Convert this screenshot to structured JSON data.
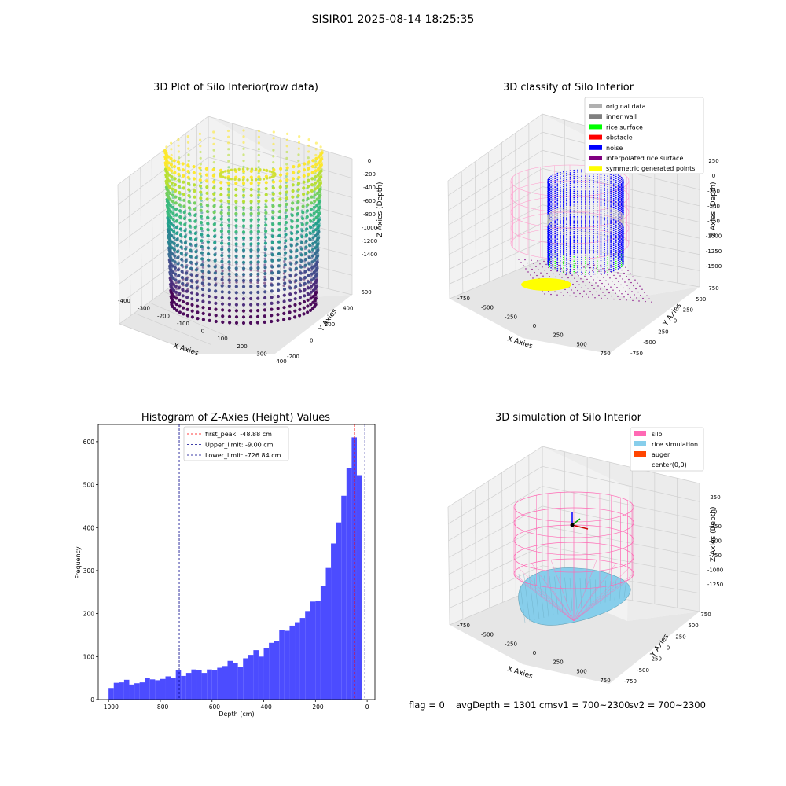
{
  "suptitle": "SISIR01 2025-08-14 18:25:35",
  "status": {
    "flag": "flag = 0",
    "avg": "avgDepth = 1301 cmsv1 = 700~2300",
    "sv2": "sv2 = 700~2300"
  },
  "colors": {
    "hist_bar": "#4c4cff",
    "peak_line": "#ff0000",
    "limit_line": "#00008b",
    "silo": "#ff69b4",
    "rice": "#87ceeb",
    "auger": "#ff4500",
    "noise": "#0000ff",
    "original": "#b0b0b0",
    "inner_wall": "#808080",
    "rice_surface": "#00ff00",
    "obstacle": "#ff0000",
    "interp": "#800080",
    "symmetric": "#ffff00"
  },
  "chart_data": [
    {
      "type": "scatter",
      "title": "3D Plot of Silo Interior(row data)",
      "xlabel": "X Axies",
      "ylabel": "Y Axies",
      "zlabel": "Z Axies (Depth)",
      "x_ticks": [
        "-400",
        "-300",
        "-200",
        "-100",
        "0",
        "100",
        "200",
        "300",
        "400"
      ],
      "y_ticks": [
        "-200",
        "0",
        "200",
        "400",
        "600"
      ],
      "z_ticks": [
        "0",
        "-200",
        "-400",
        "-600",
        "-800",
        "-1000",
        "-1200",
        "-1400"
      ],
      "xlim": [
        -400,
        400
      ],
      "ylim": [
        -200,
        650
      ],
      "zlim": [
        -1450,
        50
      ],
      "colormap": "viridis",
      "grid": true
    },
    {
      "type": "scatter",
      "title": "3D classify of Silo Interior",
      "xlabel": "X Axies",
      "ylabel": "Y Axies",
      "zlabel": "Z Axies (Depth)",
      "x_ticks": [
        "-750",
        "-500",
        "-250",
        "0",
        "250",
        "500",
        "750"
      ],
      "y_ticks": [
        "-750",
        "-500",
        "-250",
        "0",
        "250",
        "500",
        "750"
      ],
      "z_ticks": [
        "250",
        "0",
        "-250",
        "-500",
        "-750",
        "-1000",
        "-1250",
        "-1500"
      ],
      "legend_position": "top-right",
      "legend": [
        {
          "label": "original data",
          "color": "#b0b0b0"
        },
        {
          "label": "inner wall",
          "color": "#808080"
        },
        {
          "label": "rice surface",
          "color": "#00ff00"
        },
        {
          "label": "obstacle",
          "color": "#ff0000"
        },
        {
          "label": "noise",
          "color": "#0000ff"
        },
        {
          "label": "interpolated rice surface",
          "color": "#800080"
        },
        {
          "label": "symmetric generated points",
          "color": "#ffff00"
        }
      ],
      "grid": true
    },
    {
      "type": "bar",
      "title": "Histogram of Z-Axies (Height) Values",
      "xlabel": "Depth (cm)",
      "ylabel": "Frequency",
      "xlim": [
        -1040,
        30
      ],
      "ylim": [
        0,
        640
      ],
      "x_ticks": [
        -1000,
        -800,
        -600,
        -400,
        -200,
        0
      ],
      "y_ticks": [
        0,
        100,
        200,
        300,
        400,
        500,
        600
      ],
      "bin_start": -1000,
      "bin_width": 20,
      "values": [
        27,
        39,
        40,
        46,
        35,
        38,
        40,
        50,
        47,
        45,
        48,
        54,
        50,
        68,
        55,
        62,
        70,
        68,
        62,
        70,
        68,
        74,
        78,
        90,
        85,
        76,
        96,
        104,
        115,
        100,
        120,
        132,
        136,
        162,
        160,
        172,
        180,
        190,
        206,
        228,
        230,
        264,
        306,
        363,
        412,
        474,
        538,
        610,
        522
      ],
      "lines": [
        {
          "label": "first_peak: -48.88 cm",
          "x": -48.88,
          "color": "#ff0000"
        },
        {
          "label": "Upper_limit: -9.00 cm",
          "x": -9.0,
          "color": "#00008b"
        },
        {
          "label": "Lower_limit: -726.84 cm",
          "x": -726.84,
          "color": "#00008b"
        }
      ],
      "legend_position": "top-center",
      "grid": false
    },
    {
      "type": "scatter",
      "title": "3D simulation of Silo Interior",
      "xlabel": "X Axies",
      "ylabel": "Y Axies",
      "zlabel": "Z Axies (Depth)",
      "x_ticks": [
        "-750",
        "-500",
        "-250",
        "0",
        "250",
        "500",
        "750"
      ],
      "y_ticks": [
        "-750",
        "-500",
        "-250",
        "0",
        "250",
        "500",
        "750"
      ],
      "z_ticks": [
        "250",
        "0",
        "-250",
        "-500",
        "-750",
        "-1000",
        "-1250"
      ],
      "legend_position": "top-right",
      "legend": [
        {
          "label": "silo",
          "color": "#ff69b4"
        },
        {
          "label": "rice simulation",
          "color": "#87ceeb"
        },
        {
          "label": "auger",
          "color": "#ff4500"
        },
        {
          "label": "center(0,0)",
          "color": "#ffffff"
        }
      ],
      "grid": true
    }
  ]
}
